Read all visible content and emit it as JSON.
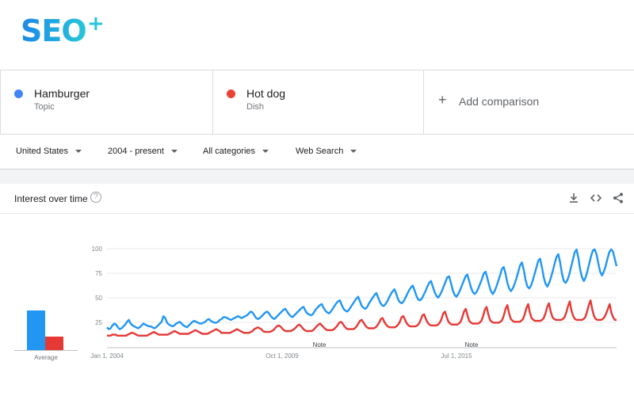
{
  "logo": {
    "text": "SEO",
    "plus": "+"
  },
  "terms": [
    {
      "name": "Hamburger",
      "type": "Topic",
      "color": "#4285f4"
    },
    {
      "name": "Hot dog",
      "type": "Dish",
      "color": "#ea4335"
    }
  ],
  "add_comparison": {
    "icon": "plus-icon",
    "label": "Add comparison"
  },
  "filters": [
    {
      "label": "United States"
    },
    {
      "label": "2004 - present"
    },
    {
      "label": "All categories"
    },
    {
      "label": "Web Search"
    }
  ],
  "card": {
    "title": "Interest over time",
    "help": "?",
    "icons": [
      "download-icon",
      "embed-icon",
      "share-icon"
    ]
  },
  "chart_data": {
    "type": "line",
    "ylim": [
      0,
      100
    ],
    "y_ticks": [
      25,
      50,
      75,
      100
    ],
    "x_labels": [
      "Jan 1, 2004",
      "Oct 1, 2009",
      "Jul 1, 2015"
    ],
    "annotations": [
      "Note",
      "Note"
    ],
    "average": {
      "label": "Average",
      "values": [
        {
          "series": "Hamburger",
          "value": 48
        },
        {
          "series": "Hot dog",
          "value": 16
        }
      ]
    },
    "series": [
      {
        "name": "Hamburger",
        "color": "#2196f3",
        "values": [
          16,
          14,
          15,
          18,
          20,
          19,
          16,
          14,
          15,
          17,
          19,
          22,
          24,
          20,
          18,
          17,
          16,
          15,
          16,
          18,
          20,
          19,
          18,
          17,
          17,
          16,
          15,
          16,
          18,
          20,
          22,
          28,
          26,
          21,
          19,
          18,
          17,
          18,
          20,
          21,
          22,
          20,
          18,
          17,
          16,
          18,
          20,
          22,
          23,
          22,
          21,
          20,
          20,
          21,
          22,
          24,
          25,
          23,
          22,
          21,
          21,
          22,
          24,
          25,
          27,
          27,
          26,
          25,
          24,
          25,
          26,
          27,
          28,
          27,
          26,
          27,
          28,
          29,
          31,
          33,
          32,
          29,
          26,
          25,
          26,
          28,
          30,
          32,
          33,
          31,
          28,
          26,
          25,
          27,
          29,
          31,
          33,
          35,
          36,
          33,
          30,
          28,
          27,
          29,
          31,
          33,
          35,
          37,
          38,
          34,
          31,
          30,
          29,
          30,
          33,
          36,
          38,
          40,
          41,
          37,
          34,
          32,
          31,
          33,
          36,
          39,
          42,
          44,
          45,
          40,
          36,
          34,
          33,
          35,
          38,
          41,
          44,
          47,
          49,
          44,
          39,
          37,
          36,
          38,
          42,
          45,
          48,
          51,
          53,
          48,
          43,
          40,
          39,
          41,
          44,
          48,
          52,
          55,
          57,
          52,
          46,
          43,
          42,
          44,
          48,
          52,
          56,
          59,
          61,
          56,
          50,
          46,
          45,
          47,
          51,
          55,
          60,
          64,
          66,
          60,
          54,
          50,
          48,
          51,
          55,
          60,
          65,
          70,
          71,
          64,
          56,
          51,
          49,
          52,
          56,
          61,
          66,
          71,
          73,
          66,
          59,
          54,
          52,
          54,
          58,
          63,
          68,
          74,
          76,
          69,
          61,
          55,
          52,
          55,
          60,
          66,
          72,
          79,
          81,
          74,
          64,
          58,
          55,
          58,
          63,
          69,
          76,
          83,
          86,
          78,
          67,
          60,
          58,
          61,
          67,
          74,
          81,
          88,
          90,
          81,
          70,
          63,
          60,
          64,
          70,
          77,
          85,
          92,
          95,
          86,
          74,
          66,
          64,
          67,
          73,
          81,
          89,
          97,
          100,
          91,
          78,
          70,
          66,
          70,
          77,
          85,
          93,
          99,
          100,
          95,
          85,
          76,
          72,
          76,
          82,
          90,
          97,
          100,
          98,
          90,
          82
        ]
      },
      {
        "name": "Hot dog",
        "color": "#e53935",
        "values": [
          7,
          7,
          7,
          8,
          8,
          8,
          7,
          7,
          7,
          7,
          7,
          7,
          8,
          9,
          10,
          10,
          9,
          8,
          7,
          7,
          7,
          7,
          7,
          7,
          8,
          9,
          10,
          11,
          10,
          9,
          8,
          8,
          8,
          8,
          8,
          8,
          9,
          10,
          11,
          12,
          11,
          10,
          9,
          9,
          9,
          9,
          9,
          9,
          10,
          11,
          12,
          13,
          12,
          11,
          10,
          9,
          9,
          9,
          9,
          10,
          11,
          12,
          13,
          14,
          13,
          12,
          10,
          10,
          10,
          10,
          10,
          10,
          11,
          12,
          13,
          14,
          13,
          12,
          11,
          10,
          10,
          10,
          10,
          11,
          12,
          14,
          15,
          16,
          15,
          14,
          12,
          11,
          11,
          11,
          11,
          12,
          13,
          15,
          17,
          18,
          17,
          15,
          13,
          12,
          12,
          12,
          12,
          13,
          14,
          16,
          18,
          19,
          17,
          15,
          13,
          12,
          12,
          12,
          12,
          13,
          15,
          17,
          19,
          20,
          18,
          16,
          14,
          13,
          13,
          13,
          13,
          14,
          16,
          18,
          21,
          22,
          20,
          17,
          15,
          14,
          14,
          14,
          14,
          15,
          17,
          20,
          23,
          24,
          21,
          18,
          16,
          15,
          15,
          15,
          15,
          16,
          18,
          21,
          25,
          26,
          22,
          19,
          17,
          16,
          16,
          16,
          16,
          17,
          19,
          22,
          27,
          28,
          24,
          20,
          18,
          17,
          17,
          17,
          17,
          18,
          20,
          24,
          29,
          30,
          25,
          21,
          19,
          18,
          18,
          18,
          18,
          19,
          21,
          25,
          31,
          33,
          27,
          22,
          20,
          19,
          19,
          19,
          19,
          20,
          22,
          27,
          33,
          36,
          29,
          23,
          21,
          20,
          20,
          20,
          20,
          21,
          23,
          28,
          35,
          38,
          30,
          24,
          22,
          21,
          21,
          21,
          21,
          22,
          24,
          29,
          36,
          40,
          31,
          25,
          23,
          22,
          22,
          22,
          22,
          23,
          25,
          30,
          37,
          41,
          32,
          26,
          24,
          23,
          23,
          23,
          23,
          24,
          26,
          31,
          38,
          42,
          33,
          27,
          25,
          24,
          24,
          24,
          24,
          25,
          27,
          32,
          39,
          44,
          34,
          28,
          25,
          24,
          24,
          24,
          24,
          25,
          27,
          33,
          40,
          45,
          35,
          28,
          25,
          24,
          24,
          24,
          25,
          27,
          31,
          36,
          41,
          32,
          27,
          24,
          24
        ]
      }
    ]
  }
}
